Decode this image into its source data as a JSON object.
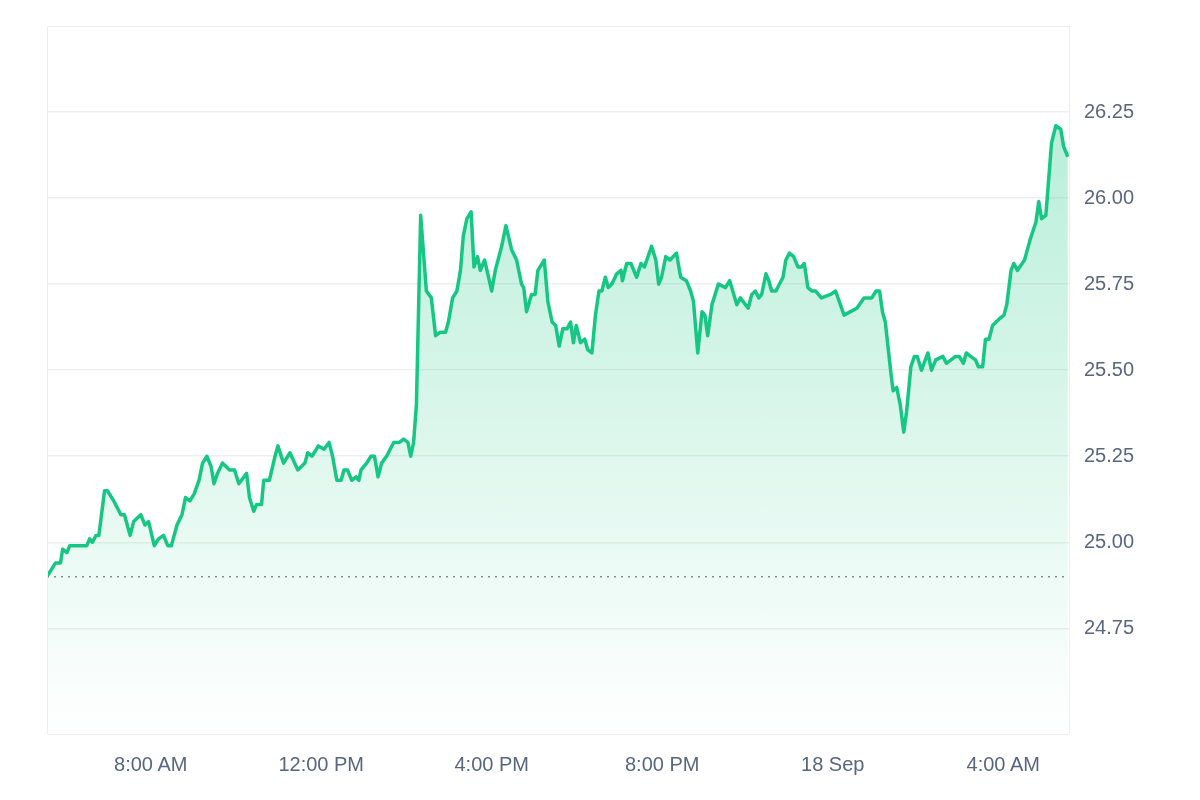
{
  "chart_data": {
    "type": "area",
    "color": "#16c784",
    "marker": "none",
    "grid": "y",
    "x": [
      "--09-17T05:34",
      "--09-17T05:46",
      "--09-17T05:53",
      "--09-17T05:56",
      "--09-17T06:02",
      "--09-17T06:06",
      "--09-17T06:19",
      "--09-17T06:24",
      "--09-17T06:30",
      "--09-17T06:34",
      "--09-17T06:38",
      "--09-17T06:43",
      "--09-17T06:47",
      "--09-17T06:55",
      "--09-17T06:59",
      "--09-17T07:08",
      "--09-17T07:18",
      "--09-17T07:23",
      "--09-17T07:31",
      "--09-17T07:36",
      "--09-17T07:46",
      "--09-17T07:52",
      "--09-17T07:57",
      "--09-17T08:05",
      "--09-17T08:11",
      "--09-17T08:18",
      "--09-17T08:24",
      "--09-17T08:29",
      "--09-17T08:37",
      "--09-17T08:44",
      "--09-17T08:49",
      "--09-17T08:55",
      "--09-17T09:01",
      "--09-17T09:08",
      "--09-17T09:13",
      "--09-17T09:19",
      "--09-17T09:25",
      "--09-17T09:29",
      "--09-17T09:34",
      "--09-17T09:41",
      "--09-17T09:51",
      "--09-17T09:58",
      "--09-17T10:04",
      "--09-17T10:15",
      "--09-17T10:19",
      "--09-17T10:25",
      "--09-17T10:29",
      "--09-17T10:36",
      "--09-17T10:39",
      "--09-17T10:47",
      "--09-17T10:55",
      "--09-17T10:59",
      "--09-17T11:07",
      "--09-17T11:16",
      "--09-17T11:27",
      "--09-17T11:37",
      "--09-17T11:41",
      "--09-17T11:47",
      "--09-17T11:56",
      "--09-17T12:04",
      "--09-17T12:11",
      "--09-17T12:16",
      "--09-17T12:22",
      "--09-17T12:28",
      "--09-17T12:32",
      "--09-17T12:37",
      "--09-17T12:43",
      "--09-17T12:49",
      "--09-17T12:53",
      "--09-17T12:56",
      "--09-17T13:04",
      "--09-17T13:10",
      "--09-17T13:15",
      "--09-17T13:20",
      "--09-17T13:25",
      "--09-17T13:32",
      "--09-17T13:42",
      "--09-17T13:50",
      "--09-17T13:56",
      "--09-17T14:02",
      "--09-17T14:06",
      "--09-17T14:10",
      "--09-17T14:14",
      "--09-17T14:20",
      "--09-17T14:28",
      "--09-17T14:35",
      "--09-17T14:41",
      "--09-17T14:47",
      "--09-17T14:55",
      "--09-17T14:59",
      "--09-17T15:05",
      "--09-17T15:11",
      "--09-17T15:16",
      "--09-17T15:20",
      "--09-17T15:25",
      "--09-17T15:31",
      "--09-17T15:35",
      "--09-17T15:40",
      "--09-17T15:44",
      "--09-17T15:50",
      "--09-17T16:00",
      "--09-17T16:05",
      "--09-17T16:14",
      "--09-17T16:20",
      "--09-17T16:28",
      "--09-17T16:35",
      "--09-17T16:42",
      "--09-17T16:45",
      "--09-17T16:49",
      "--09-17T16:56",
      "--09-17T17:01",
      "--09-17T17:05",
      "--09-17T17:14",
      "--09-17T17:19",
      "--09-17T17:25",
      "--09-17T17:30",
      "--09-17T17:35",
      "--09-17T17:40",
      "--09-17T17:46",
      "--09-17T17:51",
      "--09-17T17:55",
      "--09-17T17:59",
      "--09-17T18:05",
      "--09-17T18:11",
      "--09-17T18:15",
      "--09-17T18:21",
      "--09-17T18:26",
      "--09-17T18:31",
      "--09-17T18:35",
      "--09-17T18:40",
      "--09-17T18:44",
      "--09-17T18:49",
      "--09-17T18:56",
      "--09-17T19:02",
      "--09-17T19:04",
      "--09-17T19:10",
      "--09-17T19:16",
      "--09-17T19:24",
      "--09-17T19:30",
      "--09-17T19:35",
      "--09-17T19:45",
      "--09-17T19:51",
      "--09-17T19:55",
      "--09-17T19:59",
      "--09-17T20:05",
      "--09-17T20:11",
      "--09-17T20:20",
      "--09-17T20:26",
      "--09-17T20:34",
      "--09-17T20:40",
      "--09-17T20:44",
      "--09-17T20:50",
      "--09-17T20:56",
      "--09-17T21:00",
      "--09-17T21:04",
      "--09-17T21:10",
      "--09-17T21:19",
      "--09-17T21:29",
      "--09-17T21:35",
      "--09-17T21:45",
      "--09-17T21:50",
      "--09-17T22:01",
      "--09-17T22:06",
      "--09-17T22:11",
      "--09-17T22:16",
      "--09-17T22:20",
      "--09-17T22:26",
      "--09-17T22:30",
      "--09-17T22:34",
      "--09-17T22:40",
      "--09-17T22:50",
      "--09-17T22:54",
      "--09-17T22:59",
      "--09-17T23:05",
      "--09-17T23:11",
      "--09-17T23:16",
      "--09-17T23:20",
      "--09-17T23:25",
      "--09-17T23:31",
      "--09-17T23:36",
      "--09-17T23:44",
      "--09-17T23:57",
      "--09-18T00:04",
      "--09-18T00:16",
      "--09-18T00:25",
      "--09-18T00:34",
      "--09-18T00:44",
      "--09-18T00:55",
      "--09-18T01:01",
      "--09-18T01:06",
      "--09-18T01:10",
      "--09-18T01:14",
      "--09-18T01:22",
      "--09-18T01:25",
      "--09-18T01:30",
      "--09-18T01:35",
      "--09-18T01:40",
      "--09-18T01:44",
      "--09-18T01:50",
      "--09-18T01:55",
      "--09-18T01:59",
      "--09-18T02:05",
      "--09-18T02:14",
      "--09-18T02:19",
      "--09-18T02:25",
      "--09-18T02:35",
      "--09-18T02:40",
      "--09-18T02:53",
      "--09-18T02:58",
      "--09-18T03:04",
      "--09-18T03:08",
      "--09-18T03:14",
      "--09-18T03:21",
      "--09-18T03:25",
      "--09-18T03:31",
      "--09-18T03:35",
      "--09-18T03:40",
      "--09-18T03:45",
      "--09-18T03:55",
      "--09-18T04:01",
      "--09-18T04:05",
      "--09-18T04:11",
      "--09-18T04:15",
      "--09-18T04:20",
      "--09-18T04:30",
      "--09-18T04:38",
      "--09-18T04:46",
      "--09-18T04:50",
      "--09-18T04:54",
      "--09-18T05:00",
      "--09-18T05:08",
      "--09-18T05:14",
      "--09-18T05:21",
      "--09-18T05:25",
      "--09-18T05:31"
    ],
    "values": [
      24.9,
      24.94,
      24.94,
      24.98,
      24.97,
      24.99,
      24.99,
      24.99,
      24.99,
      25.01,
      25.0,
      25.02,
      25.02,
      25.15,
      25.15,
      25.12,
      25.08,
      25.08,
      25.02,
      25.06,
      25.08,
      25.05,
      25.06,
      24.99,
      25.01,
      25.02,
      24.99,
      24.99,
      25.05,
      25.08,
      25.13,
      25.12,
      25.14,
      25.18,
      25.23,
      25.25,
      25.22,
      25.17,
      25.2,
      25.23,
      25.21,
      25.21,
      25.17,
      25.2,
      25.13,
      25.09,
      25.11,
      25.11,
      25.18,
      25.18,
      25.25,
      25.28,
      25.23,
      25.26,
      25.21,
      25.23,
      25.26,
      25.25,
      25.28,
      25.27,
      25.29,
      25.25,
      25.18,
      25.18,
      25.21,
      25.21,
      25.18,
      25.19,
      25.18,
      25.21,
      25.23,
      25.25,
      25.25,
      25.19,
      25.23,
      25.25,
      25.29,
      25.29,
      25.3,
      25.29,
      25.25,
      25.29,
      25.4,
      25.95,
      25.73,
      25.71,
      25.6,
      25.61,
      25.61,
      25.64,
      25.71,
      25.73,
      25.79,
      25.89,
      25.94,
      25.96,
      25.8,
      25.83,
      25.79,
      25.82,
      25.73,
      25.79,
      25.86,
      25.92,
      25.85,
      25.82,
      25.75,
      25.74,
      25.67,
      25.72,
      25.72,
      25.79,
      25.82,
      25.7,
      25.64,
      25.63,
      25.57,
      25.62,
      25.62,
      25.64,
      25.58,
      25.63,
      25.58,
      25.59,
      25.56,
      25.55,
      25.66,
      25.73,
      25.73,
      25.77,
      25.74,
      25.75,
      25.78,
      25.79,
      25.76,
      25.81,
      25.81,
      25.77,
      25.81,
      25.8,
      25.86,
      25.82,
      25.75,
      25.77,
      25.83,
      25.82,
      25.84,
      25.77,
      25.76,
      25.73,
      25.7,
      25.55,
      25.67,
      25.66,
      25.6,
      25.69,
      25.75,
      25.74,
      25.76,
      25.69,
      25.71,
      25.68,
      25.72,
      25.73,
      25.71,
      25.72,
      25.78,
      25.76,
      25.73,
      25.73,
      25.77,
      25.82,
      25.84,
      25.83,
      25.8,
      25.8,
      25.81,
      25.74,
      25.73,
      25.73,
      25.71,
      25.72,
      25.73,
      25.66,
      25.67,
      25.68,
      25.71,
      25.71,
      25.73,
      25.73,
      25.67,
      25.64,
      25.49,
      25.44,
      25.45,
      25.4,
      25.32,
      25.38,
      25.51,
      25.54,
      25.54,
      25.5,
      25.55,
      25.5,
      25.53,
      25.54,
      25.52,
      25.54,
      25.54,
      25.52,
      25.55,
      25.54,
      25.53,
      25.51,
      25.51,
      25.59,
      25.59,
      25.63,
      25.65,
      25.66,
      25.69,
      25.79,
      25.81,
      25.79,
      25.82,
      25.88,
      25.93,
      25.99,
      25.94,
      25.95,
      26.16,
      26.21,
      26.2,
      26.15,
      26.12
    ],
    "xlim": [
      "--09-17T05:34",
      "--09-18T05:34"
    ],
    "xticks": [
      {
        "value": "--09-17T08:00",
        "label": "8:00 AM"
      },
      {
        "value": "--09-17T12:00",
        "label": "12:00 PM"
      },
      {
        "value": "--09-17T16:00",
        "label": "4:00 PM"
      },
      {
        "value": "--09-17T20:00",
        "label": "8:00 PM"
      },
      {
        "value": "--09-18T00:00",
        "label": "18 Sep"
      },
      {
        "value": "--09-18T04:00",
        "label": "4:00 AM"
      }
    ],
    "ylim": [
      24.44,
      26.5
    ],
    "yticks": [
      {
        "value": 24.75,
        "label": "24.75"
      },
      {
        "value": 25,
        "label": "25.00"
      },
      {
        "value": 25.25,
        "label": "25.25"
      },
      {
        "value": 25.5,
        "label": "25.50"
      },
      {
        "value": 25.75,
        "label": "25.75"
      },
      {
        "value": 26,
        "label": "26.00"
      },
      {
        "value": 26.25,
        "label": "26.25"
      }
    ],
    "ref_lines": [
      {
        "axis": "y",
        "value": 24.9,
        "color": "#8c8c8c",
        "line_style": "dotted"
      }
    ]
  }
}
